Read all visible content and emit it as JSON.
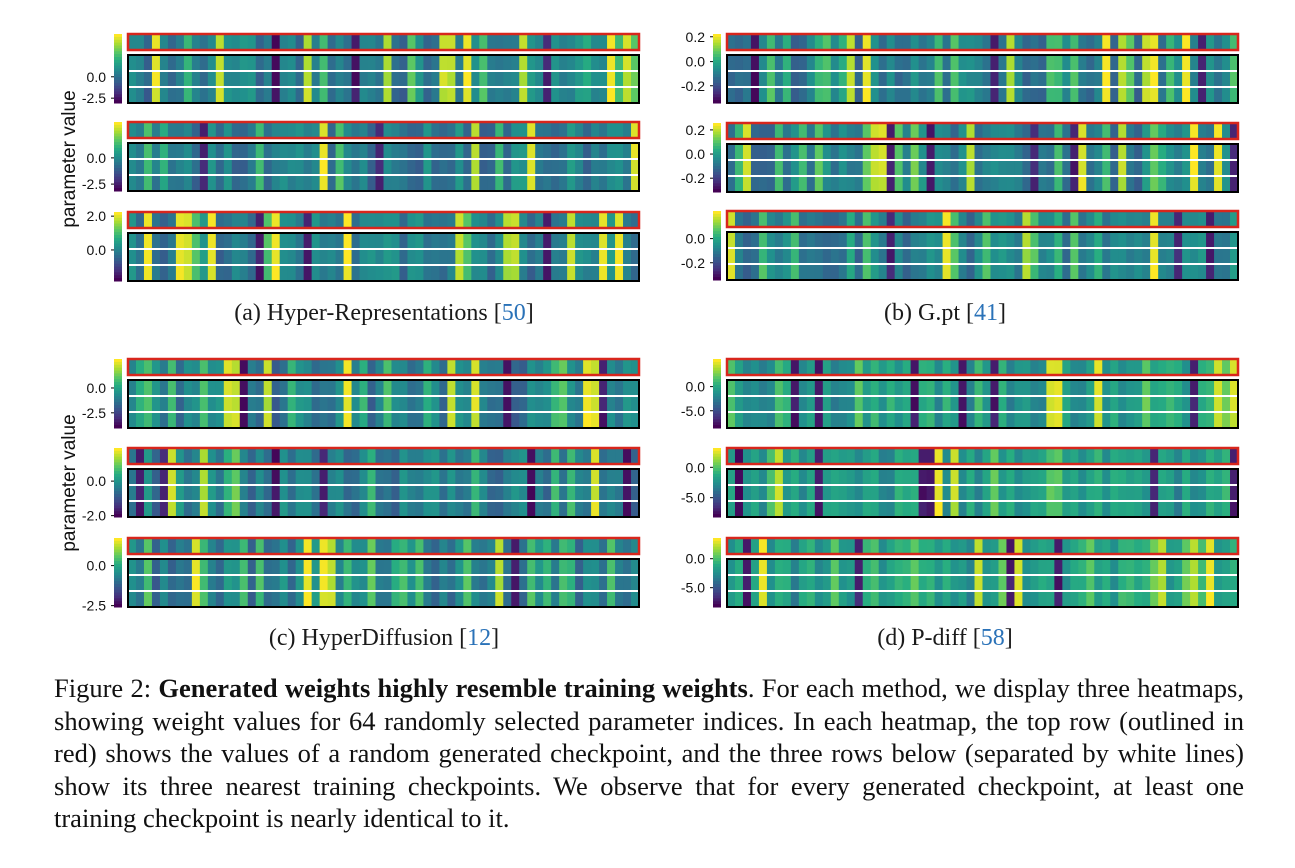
{
  "figure_number_label": "Figure 2:",
  "caption_bold": "Generated weights highly resemble training weights",
  "caption_text": ". For each method, we display three heatmaps, showing weight values for 64 randomly selected parameter indices. In each heatmap, the top row (outlined in red) shows the values of a random generated checkpoint, and the three rows below (separated by white lines) show its three nearest training checkpoints. We observe that for every generated checkpoint, at least one training checkpoint is nearly identical to it.",
  "y_axis_label": "parameter value",
  "subfigures": [
    {
      "label": "(a) Hyper-Representations [",
      "ref": "50",
      "close": "]"
    },
    {
      "label": "(b) G.pt [",
      "ref": "41",
      "close": "]"
    },
    {
      "label": "(c) HyperDiffusion [",
      "ref": "12",
      "close": "]"
    },
    {
      "label": "(d) P-diff [",
      "ref": "58",
      "close": "]"
    }
  ],
  "colors": {
    "colormap": "viridis",
    "generated_outline": "#d8261c",
    "training_outline": "#000000",
    "separator": "#ffffff",
    "ref_link": "#2a72b8"
  },
  "chart_data": [
    {
      "type": "heatmap",
      "panel": "a",
      "heatmap": 1,
      "columns": 64,
      "rows": [
        "generated",
        "training-1",
        "training-2",
        "training-3"
      ],
      "colorbar_ticks": [
        "0.0",
        "-2.5"
      ]
    },
    {
      "type": "heatmap",
      "panel": "a",
      "heatmap": 2,
      "columns": 64,
      "rows": [
        "generated",
        "training-1",
        "training-2",
        "training-3"
      ],
      "colorbar_ticks": [
        "0.0",
        "-2.5"
      ]
    },
    {
      "type": "heatmap",
      "panel": "a",
      "heatmap": 3,
      "columns": 64,
      "rows": [
        "generated",
        "training-1",
        "training-2",
        "training-3"
      ],
      "colorbar_ticks": [
        "2.0",
        "0.0"
      ]
    },
    {
      "type": "heatmap",
      "panel": "b",
      "heatmap": 1,
      "columns": 64,
      "rows": [
        "generated",
        "training-1",
        "training-2",
        "training-3"
      ],
      "colorbar_ticks": [
        "0.2",
        "0.0",
        "-0.2"
      ]
    },
    {
      "type": "heatmap",
      "panel": "b",
      "heatmap": 2,
      "columns": 64,
      "rows": [
        "generated",
        "training-1",
        "training-2",
        "training-3"
      ],
      "colorbar_ticks": [
        "0.2",
        "0.0",
        "-0.2"
      ]
    },
    {
      "type": "heatmap",
      "panel": "b",
      "heatmap": 3,
      "columns": 64,
      "rows": [
        "generated",
        "training-1",
        "training-2",
        "training-3"
      ],
      "colorbar_ticks": [
        "0.0",
        "-0.2"
      ]
    },
    {
      "type": "heatmap",
      "panel": "c",
      "heatmap": 1,
      "columns": 64,
      "rows": [
        "generated",
        "training-1",
        "training-2",
        "training-3"
      ],
      "colorbar_ticks": [
        "0.0",
        "-2.5"
      ]
    },
    {
      "type": "heatmap",
      "panel": "c",
      "heatmap": 2,
      "columns": 64,
      "rows": [
        "generated",
        "training-1",
        "training-2",
        "training-3"
      ],
      "colorbar_ticks": [
        "0.0",
        "-2.0"
      ]
    },
    {
      "type": "heatmap",
      "panel": "c",
      "heatmap": 3,
      "columns": 64,
      "rows": [
        "generated",
        "training-1",
        "training-2",
        "training-3"
      ],
      "colorbar_ticks": [
        "0.0",
        "-2.5"
      ]
    },
    {
      "type": "heatmap",
      "panel": "d",
      "heatmap": 1,
      "columns": 64,
      "rows": [
        "generated",
        "training-1",
        "training-2",
        "training-3"
      ],
      "colorbar_ticks": [
        "0.0",
        "-5.0"
      ]
    },
    {
      "type": "heatmap",
      "panel": "d",
      "heatmap": 2,
      "columns": 64,
      "rows": [
        "generated",
        "training-1",
        "training-2",
        "training-3"
      ],
      "colorbar_ticks": [
        "0.0",
        "-5.0"
      ]
    },
    {
      "type": "heatmap",
      "panel": "d",
      "heatmap": 3,
      "columns": 64,
      "rows": [
        "generated",
        "training-1",
        "training-2",
        "training-3"
      ],
      "colorbar_ticks": [
        "0.0",
        "-5.0"
      ]
    }
  ]
}
